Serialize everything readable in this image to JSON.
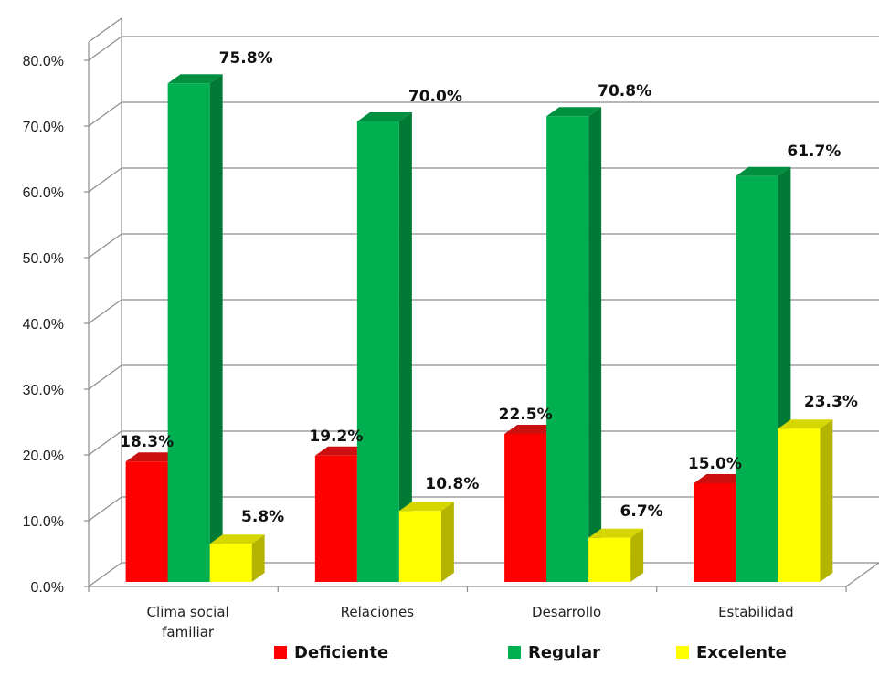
{
  "chart_data": {
    "type": "bar",
    "categories": [
      "Clima social familiar",
      "Relaciones",
      "Desarrollo",
      "Estabilidad"
    ],
    "category_labels": [
      [
        "Clima social",
        "familiar"
      ],
      [
        "Relaciones"
      ],
      [
        "Desarrollo"
      ],
      [
        "Estabilidad"
      ]
    ],
    "series": [
      {
        "name": "Deficiente",
        "values": [
          18.3,
          19.2,
          22.5,
          15.0
        ],
        "color": "#ff0000",
        "side_color": "#b00000",
        "top_color": "#cc1010"
      },
      {
        "name": "Regular",
        "values": [
          75.8,
          70.0,
          70.8,
          61.7
        ],
        "color": "#00b050",
        "side_color": "#007a35",
        "top_color": "#009040"
      },
      {
        "name": "Excelente",
        "values": [
          5.8,
          10.8,
          6.7,
          23.3
        ],
        "color": "#ffff00",
        "side_color": "#b3b300",
        "top_color": "#d6d600"
      }
    ],
    "data_labels": [
      [
        "18.3%",
        "19.2%",
        "22.5%",
        "15.0%"
      ],
      [
        "75.8%",
        "70.0%",
        "70.8%",
        "61.7%"
      ],
      [
        "5.8%",
        "10.8%",
        "6.7%",
        "23.3%"
      ]
    ],
    "y_ticks": [
      "0.0%",
      "10.0%",
      "20.0%",
      "30.0%",
      "40.0%",
      "50.0%",
      "60.0%",
      "70.0%",
      "80.0%"
    ],
    "ylim": [
      0,
      80
    ],
    "grid": true,
    "style": "3d-clustered-column",
    "legend_position": "bottom"
  }
}
